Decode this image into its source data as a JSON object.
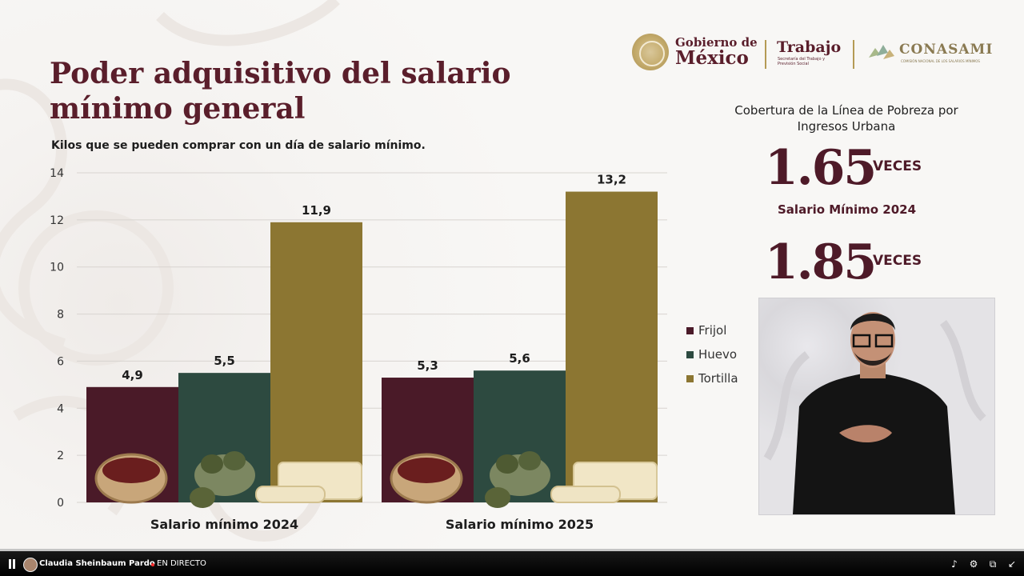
{
  "slide": {
    "title_line1": "Poder adquisitivo del salario",
    "title_line2": "mínimo general",
    "subtitle": "Kilos que se pueden comprar con un día de salario mínimo."
  },
  "logos": {
    "gob_line1": "Gobierno de",
    "gob_line2": "México",
    "trabajo": "Trabajo",
    "trabajo_sub": "Secretaría del Trabajo y Previsión Social",
    "conasami": "CONASAMI",
    "conasami_sub": "COMISIÓN NACIONAL DE LOS SALARIOS MÍNIMOS"
  },
  "chart_data": {
    "type": "bar",
    "categories": [
      "Salario mínimo 2024",
      "Salario mínimo 2025"
    ],
    "series": [
      {
        "name": "Frijol",
        "values": [
          4.9,
          5.3
        ],
        "labels": [
          "4,9",
          "5,3"
        ],
        "color": "#4a1a28"
      },
      {
        "name": "Huevo",
        "values": [
          5.5,
          5.6
        ],
        "labels": [
          "5,5",
          "5,6"
        ],
        "color": "#2d4a40"
      },
      {
        "name": "Tortilla",
        "values": [
          11.9,
          13.2
        ],
        "labels": [
          "11,9",
          "13,2"
        ],
        "color": "#8c7632"
      }
    ],
    "ylim": [
      0,
      14
    ],
    "yticks": [
      0,
      2,
      4,
      6,
      8,
      10,
      12,
      14
    ],
    "grid": true,
    "legend_position": "right"
  },
  "cobertura": {
    "title": "Cobertura de la Línea de Pobreza por Ingresos Urbana",
    "value_2024": "1.65",
    "unit": "VECES",
    "label_2024": "Salario Mínimo 2024",
    "value_2025": "1.85"
  },
  "player": {
    "channel": "Claudia Sheinbaum Pardo",
    "live_label": "EN DIRECTO"
  },
  "colors": {
    "guinda": "#4e1a28",
    "verde": "#2d4a40",
    "dorado": "#8c7632"
  }
}
